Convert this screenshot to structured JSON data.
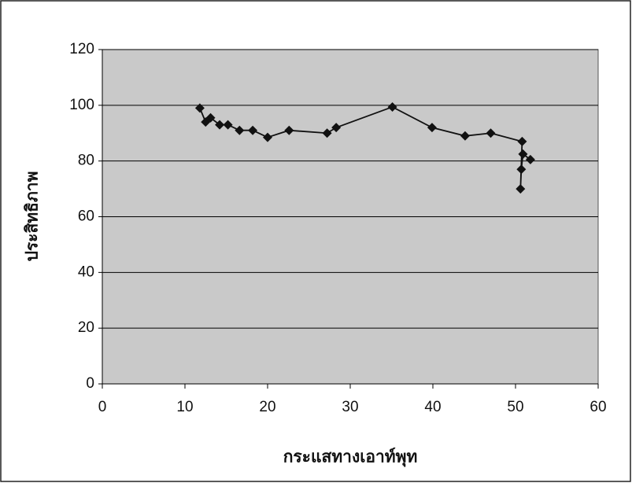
{
  "chart_data": {
    "type": "line",
    "x_label": "กระแสทางเอาท์พุท",
    "y_label": "ประสิทธิภาพ",
    "series": [
      {
        "color": "#111111",
        "x": [
          11.8,
          12.5,
          13.1,
          14.2,
          15.2,
          16.6,
          18.2,
          20,
          22.6,
          27.2,
          28.3,
          35.1,
          39.9,
          43.9,
          47,
          50.8,
          50.6,
          50.7,
          50.9,
          51.8
        ],
        "values": [
          99,
          94,
          95.5,
          93,
          93,
          91,
          91,
          88.5,
          91,
          90,
          92,
          99.4,
          92,
          89,
          90,
          87,
          70,
          77,
          82.5,
          80.5
        ]
      }
    ],
    "xlim": [
      0,
      60
    ],
    "xticks": [
      0,
      10,
      20,
      30,
      40,
      50,
      60
    ],
    "ylim": [
      0,
      120
    ],
    "yticks": [
      0,
      20,
      40,
      60,
      80,
      100,
      120
    ],
    "grid": true,
    "plot_background": "#c9c9c9"
  }
}
